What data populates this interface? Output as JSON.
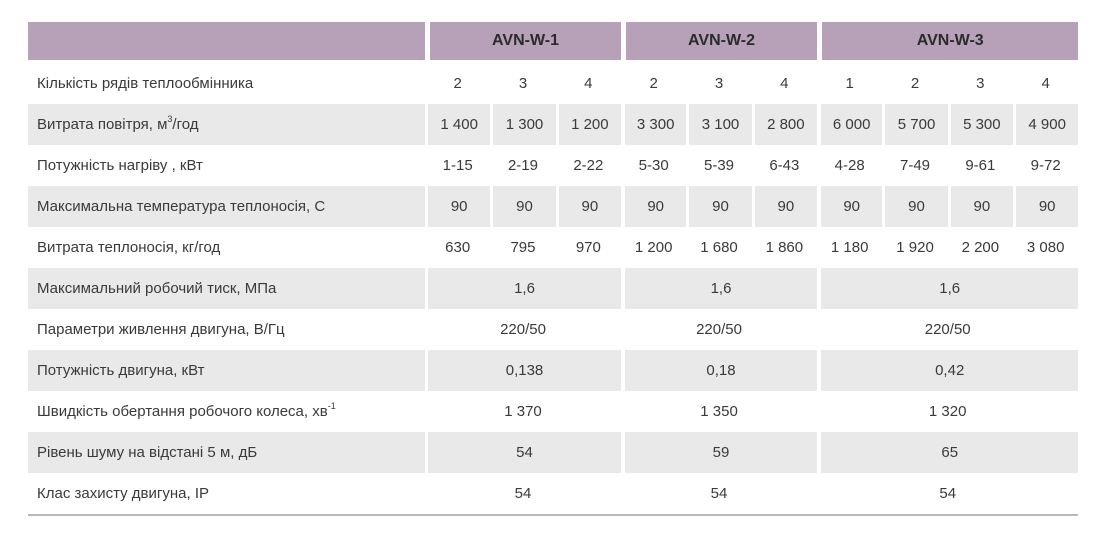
{
  "header": {
    "groups": [
      "AVN-W-1",
      "AVN-W-2",
      "AVN-W-3"
    ]
  },
  "rows": {
    "rows_count": {
      "label": "Кількість рядів теплообмінника",
      "values": [
        "2",
        "3",
        "4",
        "2",
        "3",
        "4",
        "1",
        "2",
        "3",
        "4"
      ]
    },
    "airflow": {
      "label_before": "Витрата повітря, м",
      "label_sup": "3",
      "label_after": "/год",
      "values": [
        "1 400",
        "1 300",
        "1 200",
        "3 300",
        "3 100",
        "2 800",
        "6 000",
        "5 700",
        "5 300",
        "4 900"
      ]
    },
    "heating_power": {
      "label": "Потужність нагріву , кВт",
      "values": [
        "1-15",
        "2-19",
        "2-22",
        "5-30",
        "5-39",
        "6-43",
        "4-28",
        "7-49",
        "9-61",
        "9-72"
      ]
    },
    "max_temp": {
      "label": "Максимальна температура теплоносія, С",
      "values": [
        "90",
        "90",
        "90",
        "90",
        "90",
        "90",
        "90",
        "90",
        "90",
        "90"
      ]
    },
    "coolant_flow": {
      "label": "Витрата теплоносія, кг/год",
      "values": [
        "630",
        "795",
        "970",
        "1 200",
        "1 680",
        "1 860",
        "1 180",
        "1 920",
        "2 200",
        "3 080"
      ]
    },
    "max_pressure": {
      "label": "Максимальний робочий тиск, МПа",
      "values": [
        "1,6",
        "1,6",
        "1,6"
      ]
    },
    "power_supply": {
      "label": "Параметри живлення двигуна, В/Гц",
      "values": [
        "220/50",
        "220/50",
        "220/50"
      ]
    },
    "motor_power": {
      "label": "Потужність двигуна, кВт",
      "values": [
        "0,138",
        "0,18",
        "0,42"
      ]
    },
    "impeller_speed": {
      "label_before": "Швидкість обертання робочого колеса, хв",
      "label_sup": "-1",
      "values": [
        "1 370",
        "1 350",
        "1 320"
      ]
    },
    "noise": {
      "label": "Рівень шуму на відстані 5 м, дБ",
      "values": [
        "54",
        "59",
        "65"
      ]
    },
    "protection": {
      "label": "Клас захисту двигуна, IP",
      "values": [
        "54",
        "54",
        "54"
      ]
    }
  },
  "colors": {
    "header_bg": "#b6a1b8",
    "shaded_row_bg": "#e9e9e9",
    "text": "#3a3a3a",
    "bottom_rule": "#b9b9b9"
  }
}
